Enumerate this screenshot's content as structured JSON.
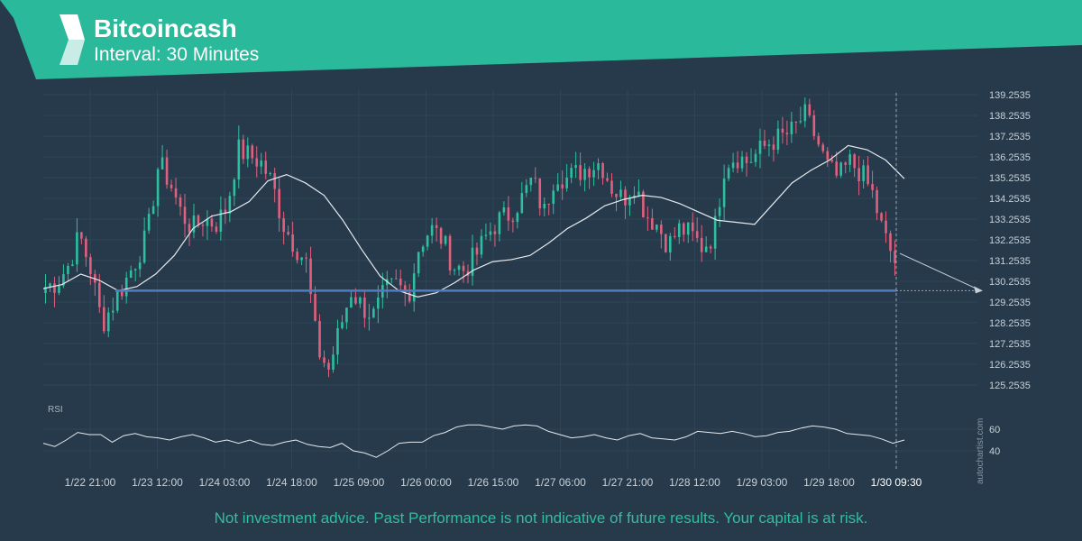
{
  "header": {
    "title": "Bitcoincash",
    "interval": "Interval: 30 Minutes",
    "accent_color": "#2ab99b",
    "logo_icon": "autochartist-logo-icon"
  },
  "disclaimer": "Not investment advice. Past Performance is not indicative of future results. Your capital is at risk.",
  "watermark": "autochartist.com",
  "chart_data": [
    {
      "type": "candlestick",
      "title": "Bitcoincash",
      "y_ticks": [
        "139.2535",
        "138.2535",
        "137.2535",
        "136.2535",
        "135.2535",
        "134.2535",
        "133.2535",
        "132.2535",
        "131.2535",
        "130.2535",
        "129.2535",
        "128.2535",
        "127.2535",
        "126.2535",
        "125.2535"
      ],
      "ylim": [
        125.2535,
        139.2535
      ],
      "x_tick_labels": [
        "1/22 21:00",
        "1/23 12:00",
        "1/24 03:00",
        "1/24 18:00",
        "1/25 09:00",
        "1/26 00:00",
        "1/26 15:00",
        "1/27 06:00",
        "1/27 21:00",
        "1/28 12:00",
        "1/29 03:00",
        "1/29 18:00",
        "1/30 09:30"
      ],
      "grid": true,
      "up_color": "#2dbf9f",
      "down_color": "#e0607e",
      "close_path": [
        130.0,
        130.2,
        131.0,
        132.5,
        130.8,
        128.2,
        129.2,
        130.2,
        131.3,
        132.5,
        136.0,
        135.0,
        133.5,
        132.8,
        133.3,
        133.0,
        133.8,
        136.6,
        136.3,
        136.0,
        135.0,
        133.0,
        132.0,
        131.2,
        127.0,
        126.0,
        128.0,
        129.8,
        129.0,
        128.6,
        129.8,
        130.1,
        129.5,
        132.0,
        132.8,
        132.3,
        131.0,
        130.8,
        131.5,
        132.5,
        133.2,
        133.5,
        134.2,
        135.2,
        133.5,
        135.5,
        135.2,
        135.5,
        135.8,
        136.0,
        134.8,
        134.2,
        135.0,
        133.5,
        133.0,
        132.0,
        132.8,
        132.5,
        131.9,
        132.5,
        136.0,
        136.3,
        136.0,
        136.5,
        137.0,
        137.2,
        137.5,
        138.3,
        137.2,
        135.8,
        135.2,
        136.0,
        135.5,
        134.5,
        132.5,
        131.2
      ],
      "moving_average": {
        "color": "#e6eaee",
        "path": [
          129.9,
          130.1,
          130.6,
          130.3,
          129.8,
          130.0,
          130.6,
          131.5,
          132.8,
          133.4,
          133.6,
          134.1,
          135.1,
          135.4,
          135.0,
          134.4,
          133.2,
          131.8,
          130.5,
          129.8,
          129.5,
          129.7,
          130.2,
          130.8,
          131.2,
          131.3,
          131.5,
          132.1,
          132.8,
          133.3,
          133.9,
          134.2,
          134.4,
          134.3,
          134.0,
          133.6,
          133.2,
          133.1,
          133.0,
          134.0,
          135.0,
          135.6,
          136.1,
          136.8,
          136.6,
          136.1,
          135.2
        ]
      },
      "support_line": {
        "value": 129.8,
        "color": "#4f7cc4"
      },
      "last_value": 131.6,
      "forecast_target": 129.8
    },
    {
      "type": "line",
      "title": "RSI",
      "y_ticks": [
        "60",
        "40"
      ],
      "ylim": [
        30,
        70
      ],
      "values": [
        47,
        44,
        50,
        57,
        55,
        55,
        48,
        54,
        56,
        53,
        52,
        50,
        53,
        55,
        52,
        48,
        50,
        47,
        50,
        46,
        45,
        48,
        50,
        46,
        44,
        43,
        47,
        40,
        38,
        34,
        40,
        47,
        48,
        48,
        54,
        57,
        62,
        64,
        64,
        62,
        60,
        63,
        64,
        63,
        58,
        55,
        52,
        53,
        55,
        52,
        50,
        54,
        56,
        52,
        51,
        50,
        53,
        58,
        57,
        56,
        58,
        56,
        53,
        54,
        57,
        58,
        61,
        63,
        62,
        60,
        56,
        55,
        54,
        51,
        47,
        50
      ]
    }
  ]
}
